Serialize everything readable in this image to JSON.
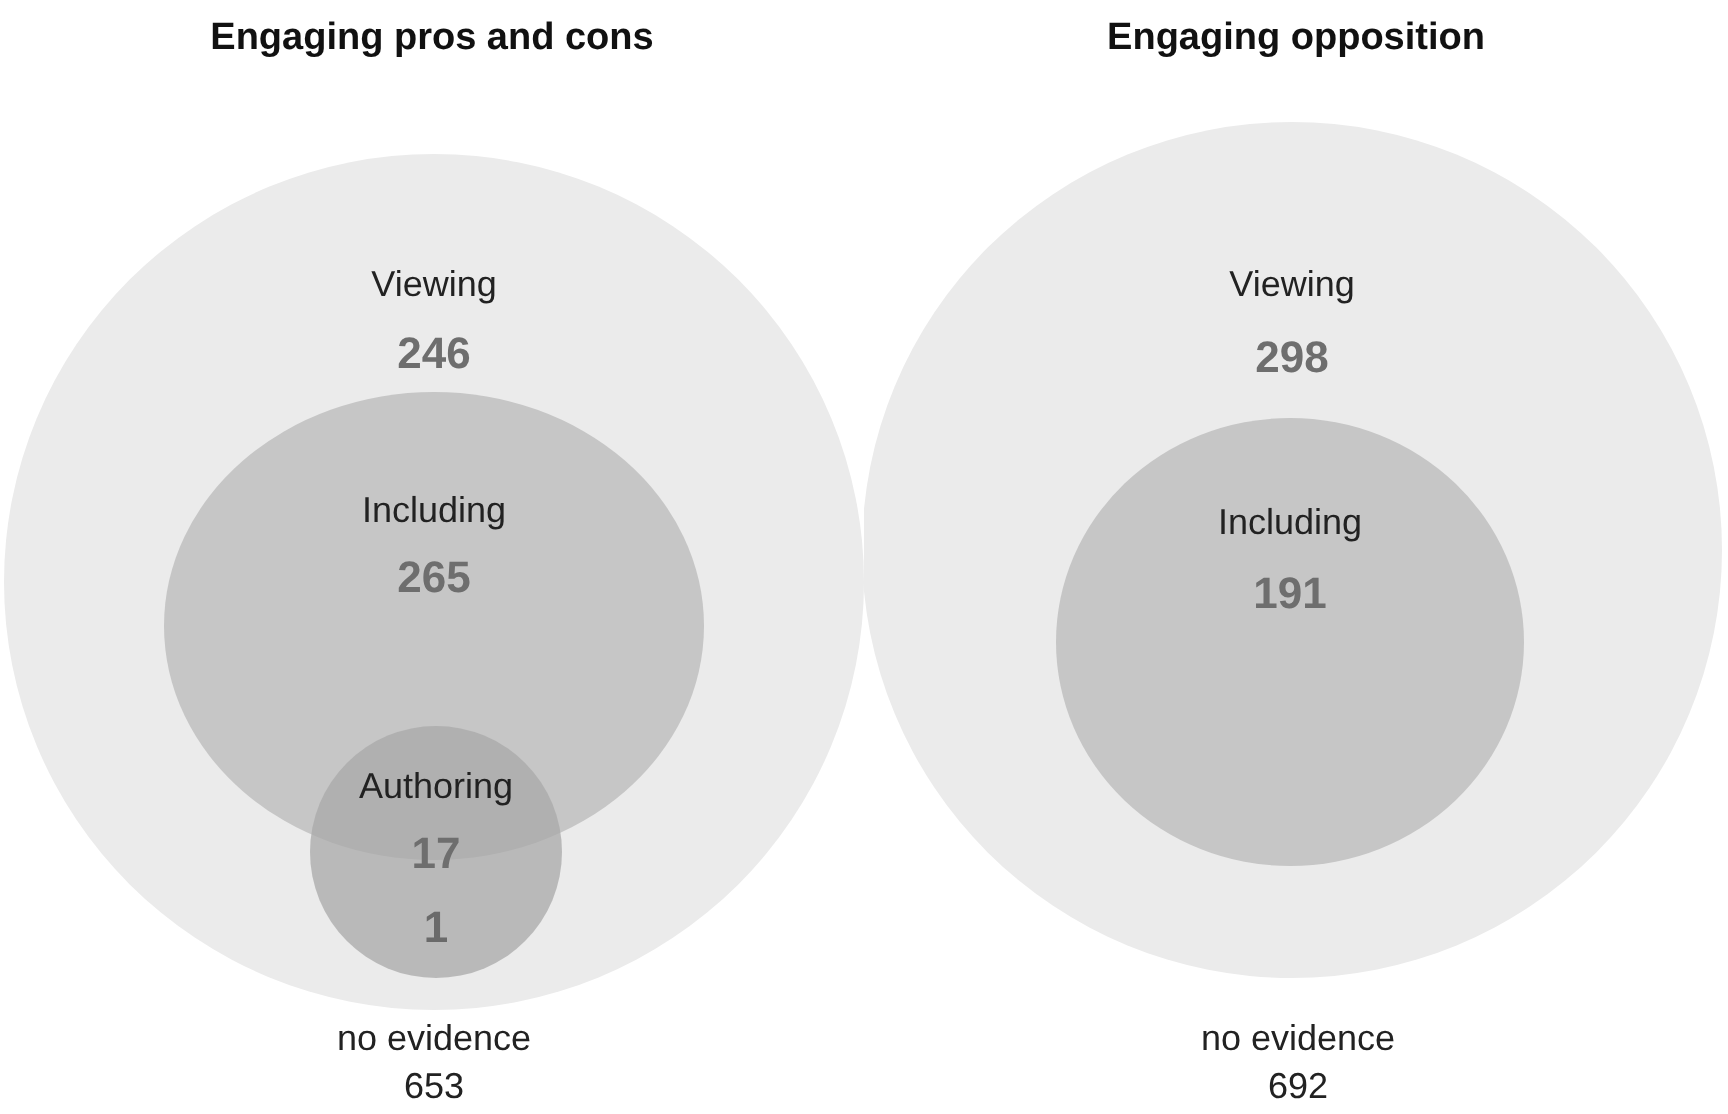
{
  "chart_data": [
    {
      "type": "other",
      "title": "Engaging pros and cons",
      "categories": [
        "Viewing",
        "Including",
        "Authoring",
        null,
        "no evidence"
      ],
      "values": [
        246,
        265,
        17,
        1,
        653
      ],
      "data_labels": true,
      "colors": [
        "#ebebeb",
        "#c6c6c6",
        "#a8a8a8",
        "#6a6a6a",
        "#222222"
      ]
    },
    {
      "type": "other",
      "title": "Engaging opposition",
      "categories": [
        "Viewing",
        "Including",
        "no evidence"
      ],
      "values": [
        298,
        191,
        692
      ],
      "data_labels": true,
      "colors": [
        "#ebebeb",
        "#c6c6c6",
        "#222222"
      ]
    }
  ]
}
